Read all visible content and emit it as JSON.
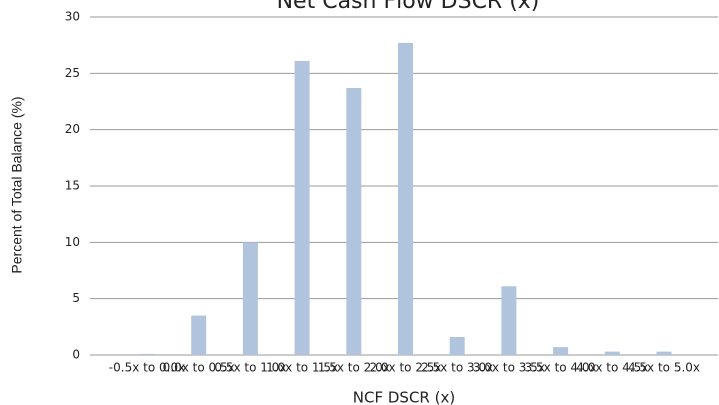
{
  "chart_data": {
    "type": "bar",
    "title": "Net Cash Flow DSCR (x)",
    "x_label": "NCF DSCR (x)",
    "y_label": "Percent of Total Balance (%)",
    "categories": [
      "-0.5x to 0.0x",
      "0.0x to 0.5x",
      "0.5x to 1.0x",
      "1.0x to 1.5x",
      "1.5x to 2.0x",
      "2.0x to 2.5x",
      "2.5x to 3.0x",
      "3.0x to 3.5x",
      "3.5x to 4.0x",
      "4.0x to 4.5x",
      "4.5x to 5.0x"
    ],
    "values": [
      0.1,
      3.5,
      10,
      26.1,
      23.7,
      27.7,
      1.6,
      6.1,
      0.7,
      0.3,
      0.3
    ],
    "color": "#b0c4de",
    "ylim": [
      0,
      30
    ],
    "yticks": [
      0,
      5,
      10,
      15,
      20,
      25,
      30
    ],
    "grid": true
  }
}
